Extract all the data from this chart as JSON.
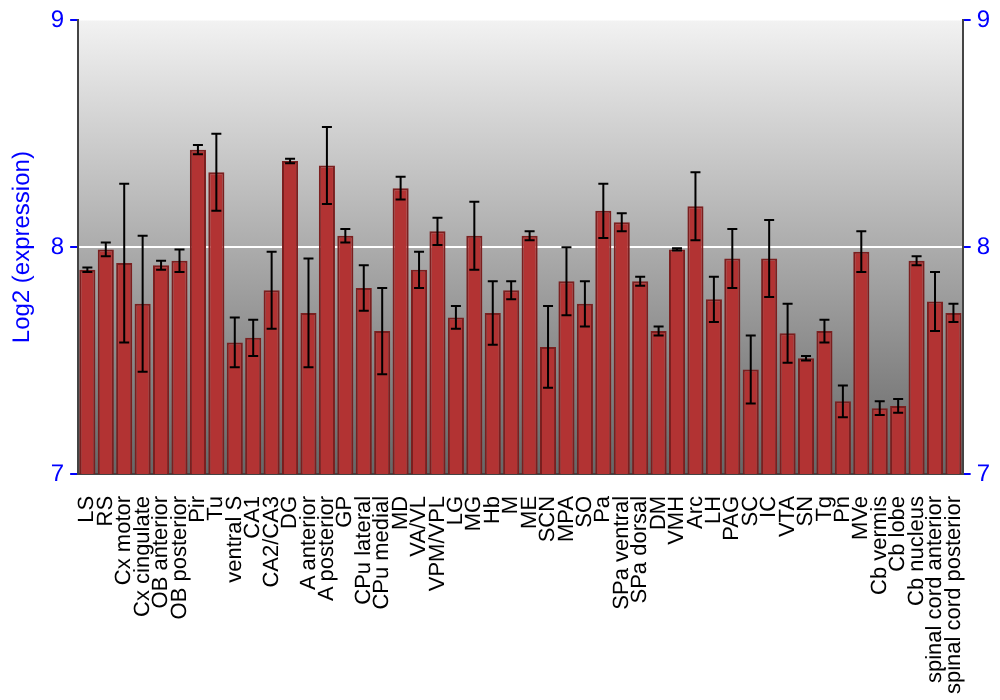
{
  "chart_data": {
    "type": "bar",
    "ylabel": "Log2 (expression)",
    "categories": [
      "LS",
      "RS",
      "Cx motor",
      "Cx cingulate",
      "OB anterior",
      "OB posterior",
      "Pir",
      "Tu",
      "ventral S",
      "CA1",
      "CA2/CA3",
      "DG",
      "A anterior",
      "A posterior",
      "GP",
      "CPu lateral",
      "CPu medial",
      "MD",
      "VA/VL",
      "VPM/VPL",
      "LG",
      "MG",
      "Hb",
      "M",
      "ME",
      "SCN",
      "MPA",
      "SO",
      "Pa",
      "SPa ventral",
      "SPa dorsal",
      "DM",
      "VMH",
      "Arc",
      "LH",
      "PAG",
      "SC",
      "IC",
      "VTA",
      "SN",
      "Tg",
      "Pn",
      "MVe",
      "Cb vermis",
      "Cb lobe",
      "Cb nucleus",
      "spinal cord anterior",
      "spinal cord posterior"
    ],
    "values": [
      7.9,
      7.99,
      7.93,
      7.75,
      7.92,
      7.94,
      8.43,
      8.33,
      7.58,
      7.6,
      7.81,
      8.38,
      7.71,
      8.36,
      8.05,
      7.82,
      7.63,
      8.26,
      7.9,
      8.07,
      7.69,
      8.05,
      7.71,
      7.81,
      8.05,
      7.56,
      7.85,
      7.75,
      8.16,
      8.11,
      7.85,
      7.63,
      7.99,
      8.18,
      7.77,
      7.95,
      7.46,
      7.95,
      7.62,
      7.51,
      7.63,
      7.32,
      7.98,
      7.29,
      7.3,
      7.94,
      7.76,
      7.71
    ],
    "errors": [
      0.01,
      0.03,
      0.35,
      0.3,
      0.02,
      0.05,
      0.02,
      0.17,
      0.11,
      0.08,
      0.17,
      0.01,
      0.24,
      0.17,
      0.03,
      0.1,
      0.19,
      0.05,
      0.08,
      0.06,
      0.05,
      0.15,
      0.14,
      0.04,
      0.02,
      0.18,
      0.15,
      0.1,
      0.12,
      0.04,
      0.02,
      0.02,
      0.005,
      0.15,
      0.1,
      0.13,
      0.15,
      0.17,
      0.13,
      0.01,
      0.05,
      0.07,
      0.09,
      0.03,
      0.03,
      0.02,
      0.13,
      0.04
    ],
    "color": "#b23333",
    "ylim": [
      7,
      9
    ],
    "yticks": [
      7,
      8,
      9
    ],
    "y2lim": [
      7,
      9
    ],
    "y2ticks": [
      7,
      8,
      9
    ],
    "grid": "y",
    "legend": false
  }
}
